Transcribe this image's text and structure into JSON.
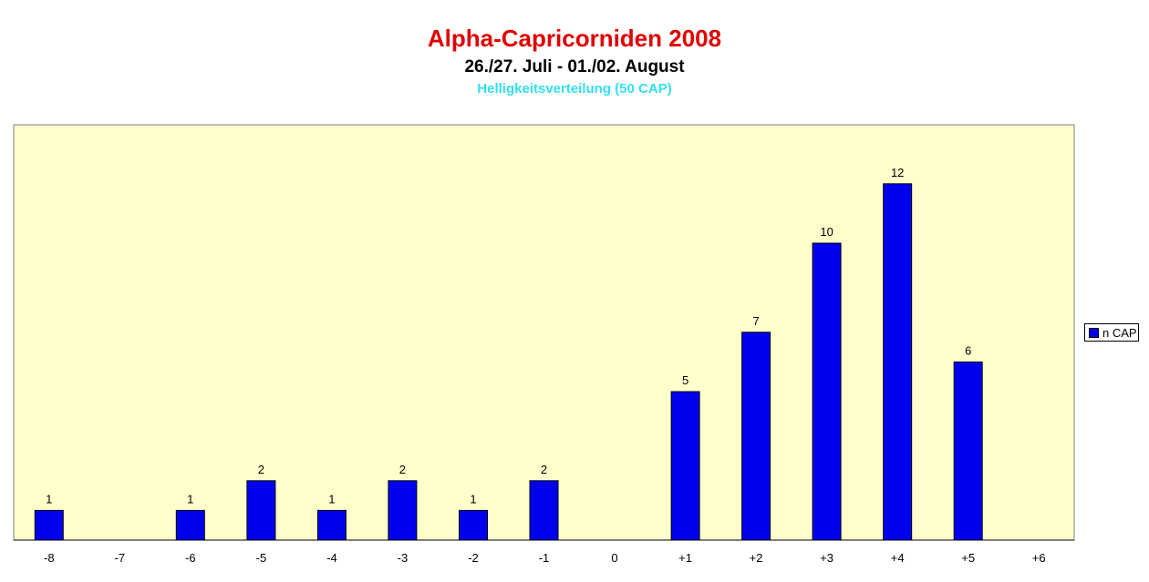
{
  "chart_data": {
    "type": "bar",
    "title": "Alpha-Capricorniden 2008",
    "subtitle": "26./27. Juli - 01./02. August",
    "subsubtitle": "Helligkeitsverteilung (50 CAP)",
    "categories": [
      "-8",
      "-7",
      "-6",
      "-5",
      "-4",
      "-3",
      "-2",
      "-1",
      "0",
      "+1",
      "+2",
      "+3",
      "+4",
      "+5",
      "+6"
    ],
    "series": [
      {
        "name": "n CAP",
        "values": [
          1,
          0,
          1,
          2,
          1,
          2,
          1,
          2,
          0,
          5,
          7,
          10,
          12,
          6,
          0
        ],
        "data_labels": [
          "1",
          "",
          "1",
          "2",
          "1",
          "2",
          "1",
          "2",
          "",
          "5",
          "7",
          "10",
          "12",
          "6",
          ""
        ]
      }
    ],
    "ylim": [
      0,
      14
    ],
    "grid": false,
    "legend_position": "right",
    "colors": {
      "bar": "#0000ee",
      "plot_background": "#ffffcc",
      "title": "#e00000",
      "subsubtitle": "#33e0f0"
    }
  }
}
